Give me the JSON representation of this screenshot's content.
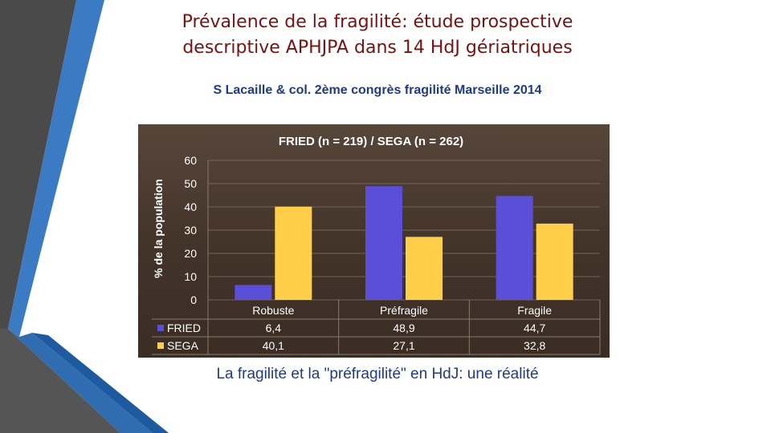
{
  "slide": {
    "title_line1": "Prévalence de la fragilité: étude prospective",
    "title_line2": "descriptive APHJPA dans 14 HdJ gériatriques",
    "subtitle": "S Lacaille & col. 2ème congrès fragilité Marseille 2014",
    "caption": "La fragilité et la \"préfragilité\" en HdJ: une réalité"
  },
  "colors": {
    "fried": "#5a4fd6",
    "sega": "#ffcf4a",
    "title": "#7a1010",
    "text_blue": "#1f3a8a",
    "chart_bg": "#4a3a2c",
    "deco_dark": "#4a4a4a",
    "deco_blue": "#2f6db0"
  },
  "chart_data": {
    "type": "bar",
    "title": "FRIED (n = 219) / SEGA (n = 262)",
    "ylabel": "% de la population",
    "categories": [
      "Robuste",
      "Préfragile",
      "Fragile"
    ],
    "series": [
      {
        "name": "FRIED",
        "values": [
          6.4,
          48.9,
          44.7
        ],
        "labels": [
          "6,4",
          "48,9",
          "44,7"
        ]
      },
      {
        "name": "SEGA",
        "values": [
          40.1,
          27.1,
          32.8
        ],
        "labels": [
          "40,1",
          "27,1",
          "32,8"
        ]
      }
    ],
    "ylim": [
      0,
      60
    ],
    "yticks": [
      0,
      10,
      20,
      30,
      40,
      50,
      60
    ],
    "grid": true,
    "legend": "data-table"
  }
}
